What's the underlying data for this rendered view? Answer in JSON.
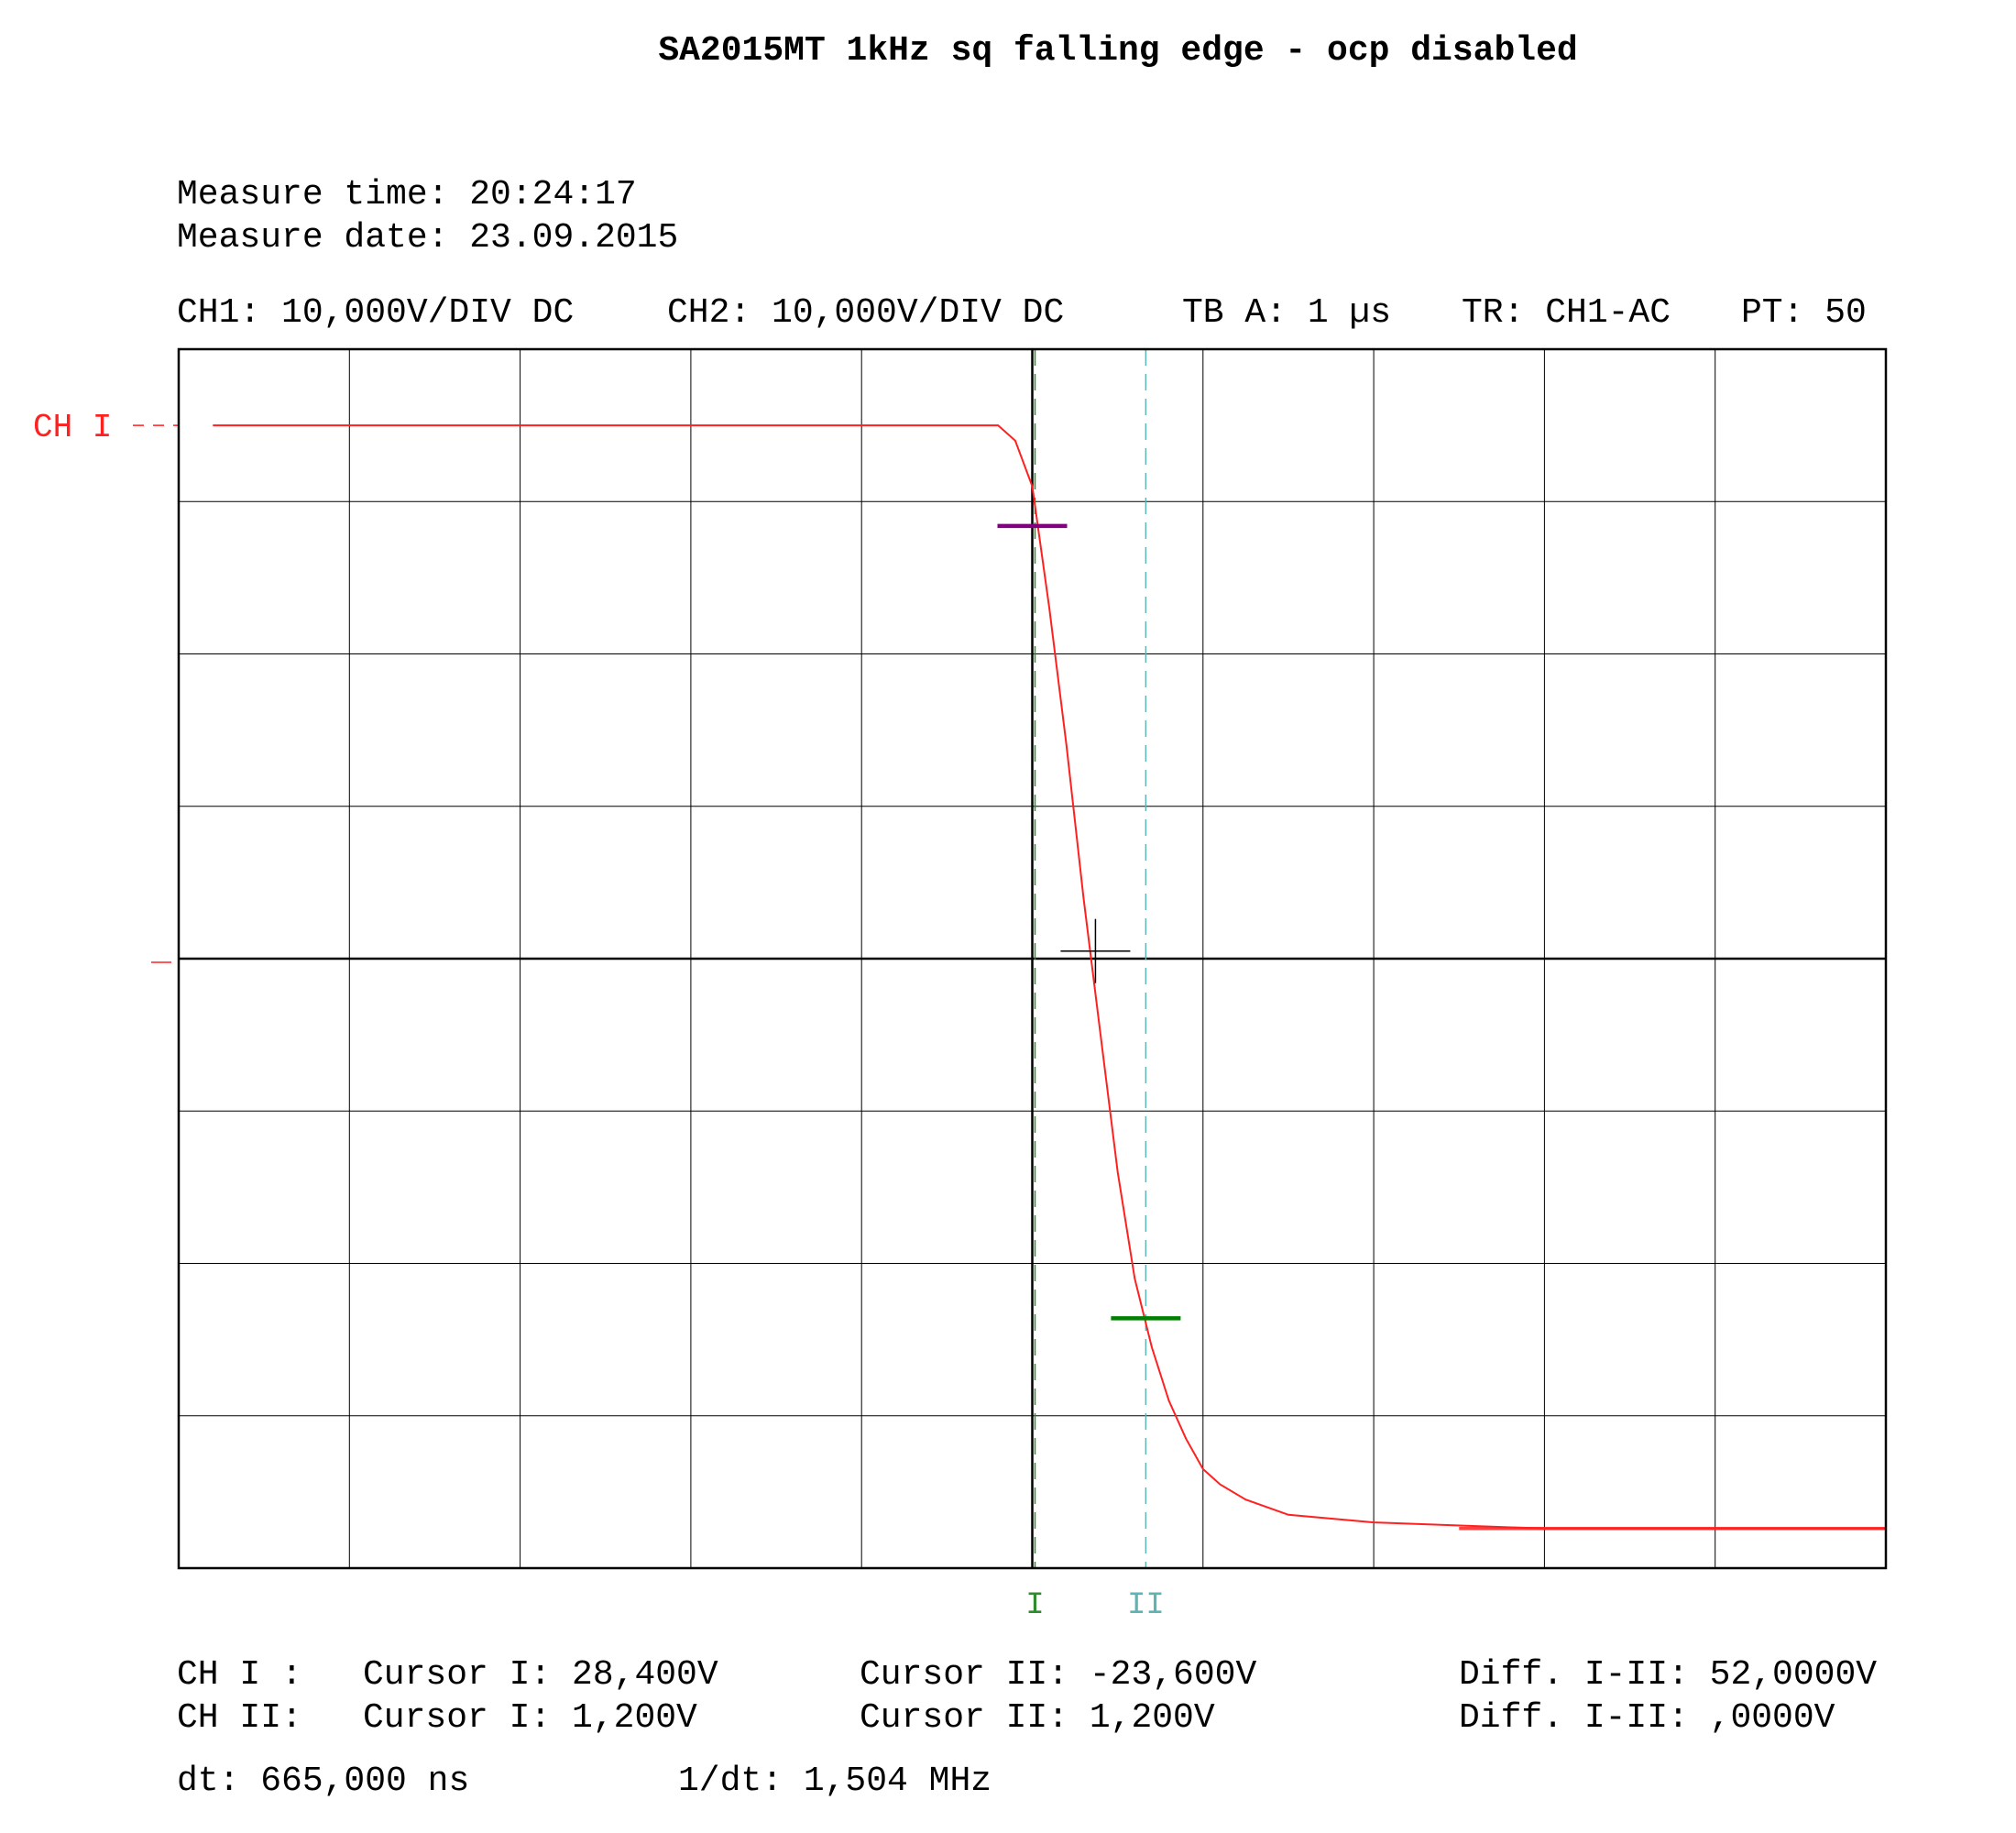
{
  "title": "SA2015MT 1kHz sq falling edge - ocp disabled",
  "measure_time": "Measure time: 20:24:17",
  "measure_date": "Measure date: 23.09.2015",
  "settings": {
    "ch1": "CH1: 10,000V/DIV DC",
    "ch2": "CH2: 10,000V/DIV DC",
    "timebase": "TB A: 1 µs",
    "trigger": "TR: CH1-AC",
    "pt": "PT: 50"
  },
  "readouts": {
    "ch1_label": "CH I :",
    "ch1_cursor1": "Cursor I: 28,400V",
    "ch1_cursor2": "Cursor II: -23,600V",
    "ch1_diff": "Diff. I-II: 52,0000V",
    "ch2_label": "CH II:",
    "ch2_cursor1": "Cursor I: 1,200V",
    "ch2_cursor2": "Cursor II: 1,200V",
    "ch2_diff": "Diff. I-II: ,0000V",
    "dt": "dt: 665,000 ns",
    "inv_dt": "1/dt: 1,504 MHz"
  },
  "colors": {
    "trace": "#ff2020",
    "grid": "#000000",
    "cursor1": "#2e8b2e",
    "cursor2": "#5fb3b3",
    "cursor1_level": "#800080",
    "cursor2_level": "#008000"
  },
  "chart_data": {
    "type": "line",
    "title": "SA2015MT 1kHz sq falling edge - ocp disabled",
    "x_unit": "µs",
    "y_unit": "V",
    "x_range": [
      -5,
      5
    ],
    "y_range": [
      -40,
      40
    ],
    "grid": true,
    "grid_divisions": {
      "x": 10,
      "y": 8
    },
    "ch1_marker_label": "CH I",
    "ch1_ground_level": 35,
    "series": [
      {
        "name": "CH I",
        "x": [
          -4.8,
          -0.2,
          -0.1,
          0.0,
          0.1,
          0.2,
          0.3,
          0.4,
          0.5,
          0.6,
          0.7,
          0.8,
          0.9,
          1.0,
          1.1,
          1.25,
          1.5,
          2.0,
          3.0,
          4.0,
          5.0
        ],
        "y": [
          35.0,
          35.0,
          34.0,
          31.0,
          23.0,
          14.0,
          4.0,
          -5.0,
          -14.0,
          -21.0,
          -25.5,
          -29.0,
          -31.5,
          -33.5,
          -34.5,
          -35.5,
          -36.5,
          -37.0,
          -37.4,
          -37.4,
          -37.4
        ]
      }
    ],
    "cursors_time": [
      {
        "label": "I",
        "x": 0.0
      },
      {
        "label": "II",
        "x": 0.665
      }
    ],
    "cursors_level": [
      {
        "label": "I",
        "y": 28.4
      },
      {
        "label": "II",
        "y": -23.6
      }
    ],
    "center_marker": {
      "x": 0.37,
      "y": 0.5
    }
  }
}
